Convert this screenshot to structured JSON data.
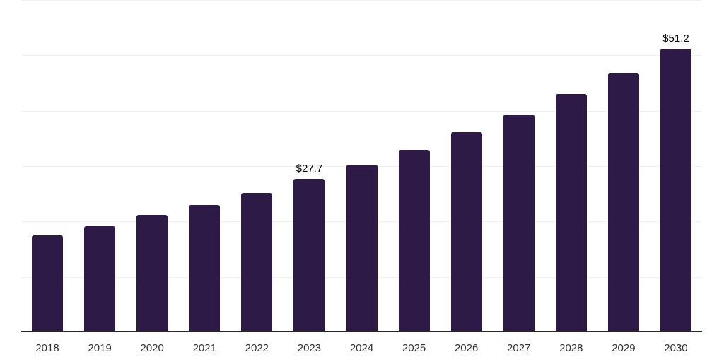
{
  "chart_data": {
    "type": "bar",
    "title": "",
    "xlabel": "",
    "ylabel": "",
    "categories": [
      "2018",
      "2019",
      "2020",
      "2021",
      "2022",
      "2023",
      "2024",
      "2025",
      "2026",
      "2027",
      "2028",
      "2029",
      "2030"
    ],
    "values": [
      17.5,
      19.1,
      21.2,
      23.0,
      25.2,
      27.7,
      30.2,
      33.0,
      36.1,
      39.3,
      43.0,
      46.9,
      51.2
    ],
    "data_labels": [
      "",
      "",
      "",
      "",
      "",
      "$27.7",
      "",
      "",
      "",
      "",
      "",
      "",
      "$51.2"
    ],
    "value_prefix": "$",
    "ylim": [
      0,
      60
    ],
    "gridlines": [
      10,
      20,
      30,
      40,
      50,
      60
    ],
    "grid": "horizontal",
    "legend_position": "none",
    "y_axis_tick_labels_visible": false
  },
  "colors": {
    "bar": "#2e1a47",
    "axis_line": "#262626",
    "gridline": "#f1f1f1",
    "tick_label": "#333333",
    "data_label": "#000000",
    "background": "#ffffff"
  }
}
